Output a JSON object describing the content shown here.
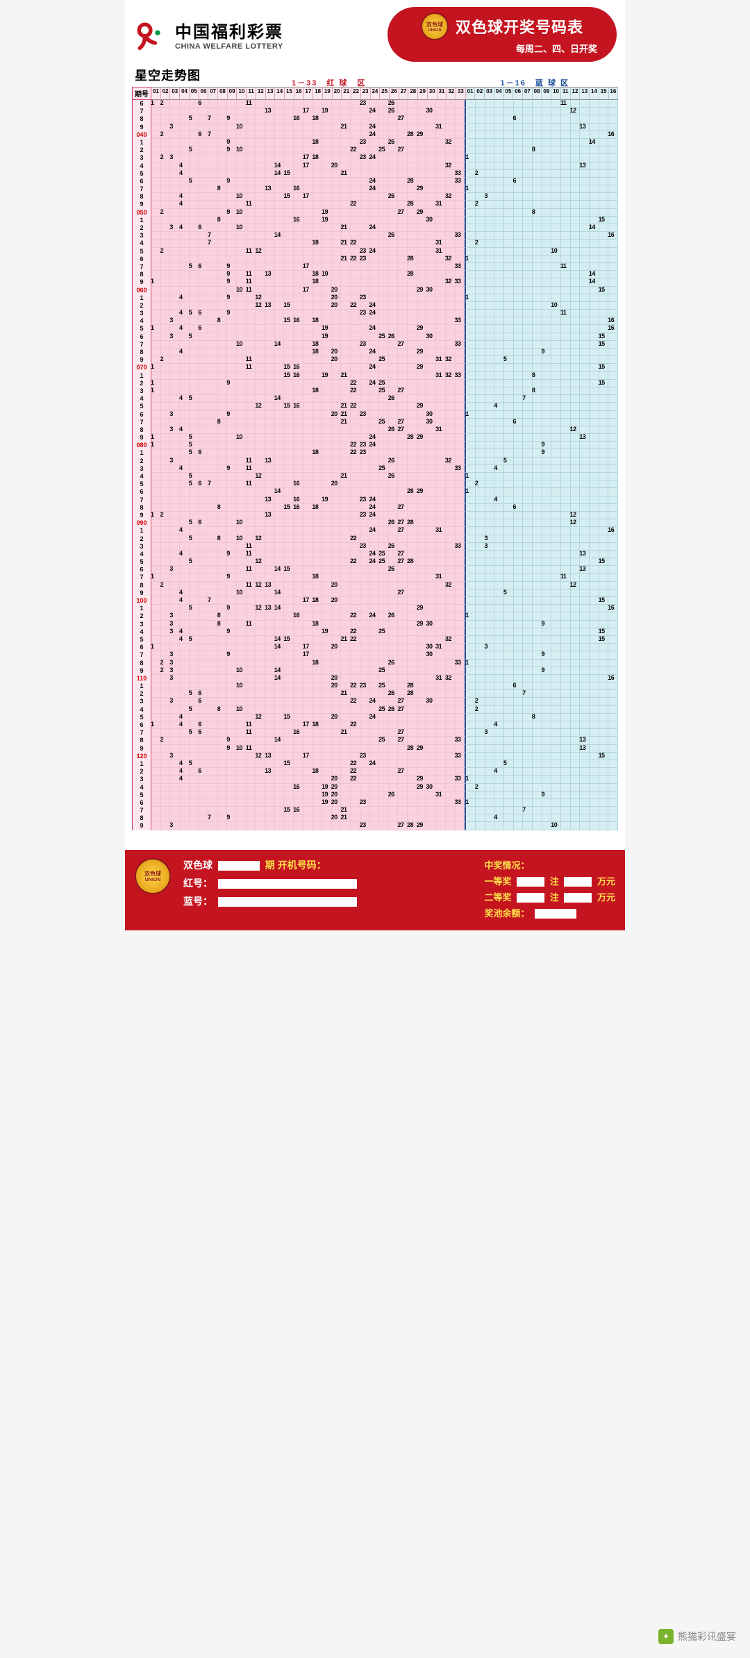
{
  "header": {
    "brand_cn": "中国福利彩票",
    "brand_en": "CHINA WELFARE LOTTERY",
    "logo_color": "#c41420",
    "badge_small": "双色球",
    "badge_small2": "UNION",
    "oval_title": "双色球开奖号码表",
    "oval_sub": "每周二、四、日开奖"
  },
  "subtitle": "星空走势图",
  "columns": {
    "issue_label": "期号",
    "red_section": "1－33　红 球　区",
    "blue_section": "1－16　蓝 球 区",
    "red_count": 33,
    "blue_count": 16
  },
  "style": {
    "red_bg": "#fad1e1",
    "blue_bg": "#d5eef2",
    "red_grid": "#efc3d4",
    "blue_grid": "#b2d4dc",
    "issue_milestone_color": "#d00000",
    "line_color": "#000000",
    "line_width": 1.4,
    "cell_height": 11.2,
    "issue_col_width": 28,
    "total_width": 700
  },
  "issues": [
    {
      "n": "6",
      "red": [
        1,
        2,
        6,
        11,
        23,
        26
      ],
      "blue": 11
    },
    {
      "n": "7",
      "red": [
        13,
        17,
        19,
        24,
        26,
        30
      ],
      "blue": 12
    },
    {
      "n": "8",
      "red": [
        5,
        7,
        9,
        16,
        18,
        27
      ],
      "blue": 6
    },
    {
      "n": "9",
      "red": [
        3,
        10,
        21,
        24,
        31
      ],
      "blue": 13
    },
    {
      "n": "040",
      "ms": true,
      "red": [
        2,
        6,
        7,
        24,
        28,
        29
      ],
      "blue": 16
    },
    {
      "n": "1",
      "red": [
        9,
        18,
        23,
        26,
        32
      ],
      "blue": 14
    },
    {
      "n": "2",
      "red": [
        5,
        9,
        10,
        22,
        25,
        27
      ],
      "blue": 8
    },
    {
      "n": "3",
      "red": [
        2,
        3,
        17,
        18,
        23,
        24
      ],
      "blue": 1
    },
    {
      "n": "4",
      "red": [
        4,
        14,
        17,
        20,
        32
      ],
      "blue": 13
    },
    {
      "n": "5",
      "red": [
        4,
        14,
        15,
        21,
        33
      ],
      "blue": 2
    },
    {
      "n": "6",
      "red": [
        5,
        9,
        24,
        28,
        33
      ],
      "blue": 6
    },
    {
      "n": "7",
      "red": [
        8,
        13,
        16,
        24,
        29
      ],
      "blue": 1
    },
    {
      "n": "8",
      "red": [
        4,
        10,
        15,
        17,
        26,
        32
      ],
      "blue": 3
    },
    {
      "n": "9",
      "red": [
        4,
        11,
        22,
        28,
        31
      ],
      "blue": 2
    },
    {
      "n": "050",
      "ms": true,
      "red": [
        2,
        9,
        10,
        19,
        27,
        29
      ],
      "blue": 8
    },
    {
      "n": "1",
      "red": [
        8,
        16,
        19,
        30
      ],
      "blue": 15
    },
    {
      "n": "2",
      "red": [
        3,
        4,
        6,
        10,
        21,
        24
      ],
      "blue": 14
    },
    {
      "n": "3",
      "red": [
        7,
        14,
        26,
        33
      ],
      "blue": 16
    },
    {
      "n": "4",
      "red": [
        7,
        18,
        21,
        22,
        31
      ],
      "blue": 2
    },
    {
      "n": "5",
      "red": [
        2,
        11,
        12,
        23,
        24,
        31
      ],
      "blue": 10
    },
    {
      "n": "6",
      "red": [
        21,
        22,
        23,
        28,
        32
      ],
      "blue": 1
    },
    {
      "n": "7",
      "red": [
        5,
        6,
        9,
        17,
        33
      ],
      "blue": 11
    },
    {
      "n": "8",
      "red": [
        9,
        11,
        13,
        18,
        19,
        28
      ],
      "blue": 14
    },
    {
      "n": "9",
      "red": [
        1,
        9,
        11,
        18,
        32,
        33
      ],
      "blue": 14
    },
    {
      "n": "060",
      "ms": true,
      "red": [
        10,
        11,
        17,
        20,
        29,
        30
      ],
      "blue": 15
    },
    {
      "n": "1",
      "red": [
        4,
        9,
        12,
        20,
        23
      ],
      "blue": 1
    },
    {
      "n": "2",
      "red": [
        12,
        13,
        15,
        20,
        22,
        24
      ],
      "blue": 10
    },
    {
      "n": "3",
      "red": [
        4,
        5,
        6,
        9,
        23,
        24
      ],
      "blue": 11
    },
    {
      "n": "4",
      "red": [
        3,
        8,
        15,
        16,
        18,
        33
      ],
      "blue": 16
    },
    {
      "n": "5",
      "red": [
        1,
        4,
        6,
        19,
        24,
        29
      ],
      "blue": 16
    },
    {
      "n": "6",
      "red": [
        3,
        5,
        19,
        25,
        26,
        30
      ],
      "blue": 15
    },
    {
      "n": "7",
      "red": [
        10,
        14,
        18,
        23,
        27,
        33
      ],
      "blue": 15
    },
    {
      "n": "8",
      "red": [
        4,
        18,
        20,
        24,
        29
      ],
      "blue": 9
    },
    {
      "n": "9",
      "red": [
        2,
        11,
        20,
        25,
        31,
        32
      ],
      "blue": 5
    },
    {
      "n": "070",
      "ms": true,
      "red": [
        1,
        11,
        15,
        16,
        24,
        29
      ],
      "blue": 15
    },
    {
      "n": "1",
      "red": [
        15,
        16,
        19,
        21,
        31,
        32,
        33
      ],
      "blue": 8
    },
    {
      "n": "2",
      "red": [
        1,
        9,
        22,
        24,
        25
      ],
      "blue": 15
    },
    {
      "n": "3",
      "red": [
        1,
        18,
        22,
        25,
        27
      ],
      "blue": 8
    },
    {
      "n": "4",
      "red": [
        4,
        5,
        14,
        26
      ],
      "blue": 7
    },
    {
      "n": "5",
      "red": [
        12,
        15,
        16,
        21,
        22,
        29
      ],
      "blue": 4
    },
    {
      "n": "6",
      "red": [
        3,
        9,
        20,
        21,
        23,
        30
      ],
      "blue": 1
    },
    {
      "n": "7",
      "red": [
        8,
        21,
        25,
        27,
        30
      ],
      "blue": 6
    },
    {
      "n": "8",
      "red": [
        3,
        4,
        26,
        27,
        31
      ],
      "blue": 12
    },
    {
      "n": "9",
      "red": [
        1,
        5,
        10,
        24,
        28,
        29
      ],
      "blue": 13
    },
    {
      "n": "080",
      "ms": true,
      "red": [
        1,
        5,
        22,
        23,
        24
      ],
      "blue": 9
    },
    {
      "n": "1",
      "red": [
        5,
        6,
        18,
        22,
        23
      ],
      "blue": 9
    },
    {
      "n": "2",
      "red": [
        3,
        11,
        13,
        26,
        32
      ],
      "blue": 5
    },
    {
      "n": "3",
      "red": [
        4,
        9,
        11,
        25,
        33
      ],
      "blue": 4
    },
    {
      "n": "4",
      "red": [
        5,
        12,
        21,
        26
      ],
      "blue": 1
    },
    {
      "n": "5",
      "red": [
        5,
        6,
        7,
        11,
        16,
        20
      ],
      "blue": 2
    },
    {
      "n": "6",
      "red": [
        14,
        28,
        29
      ],
      "blue": 1
    },
    {
      "n": "7",
      "red": [
        13,
        16,
        19,
        23,
        24
      ],
      "blue": 4
    },
    {
      "n": "8",
      "red": [
        8,
        15,
        16,
        18,
        24,
        27
      ],
      "blue": 6
    },
    {
      "n": "9",
      "red": [
        1,
        2,
        13,
        23,
        24
      ],
      "blue": 12
    },
    {
      "n": "090",
      "ms": true,
      "red": [
        5,
        6,
        10,
        26,
        27,
        28
      ],
      "blue": 12
    },
    {
      "n": "1",
      "red": [
        4,
        24,
        27,
        31
      ],
      "blue": 16
    },
    {
      "n": "2",
      "red": [
        5,
        8,
        10,
        12,
        22
      ],
      "blue": 3
    },
    {
      "n": "3",
      "red": [
        11,
        23,
        26,
        33
      ],
      "blue": 3
    },
    {
      "n": "4",
      "red": [
        4,
        9,
        11,
        24,
        25,
        27
      ],
      "blue": 13
    },
    {
      "n": "5",
      "red": [
        5,
        12,
        22,
        24,
        25,
        27,
        28
      ],
      "blue": 15
    },
    {
      "n": "6",
      "red": [
        3,
        11,
        14,
        15,
        26
      ],
      "blue": 13
    },
    {
      "n": "7",
      "red": [
        1,
        9,
        18,
        31
      ],
      "blue": 11
    },
    {
      "n": "8",
      "red": [
        2,
        11,
        12,
        13,
        20,
        32
      ],
      "blue": 12
    },
    {
      "n": "9",
      "red": [
        4,
        10,
        14,
        27
      ],
      "blue": 5
    },
    {
      "n": "100",
      "ms": true,
      "red": [
        4,
        7,
        17,
        18,
        20
      ],
      "blue": 15
    },
    {
      "n": "1",
      "red": [
        5,
        9,
        12,
        13,
        14,
        29
      ],
      "blue": 16
    },
    {
      "n": "2",
      "red": [
        3,
        8,
        16,
        22,
        24,
        26
      ],
      "blue": 1
    },
    {
      "n": "3",
      "red": [
        3,
        8,
        11,
        18,
        29,
        30
      ],
      "blue": 9
    },
    {
      "n": "4",
      "red": [
        3,
        4,
        9,
        19,
        22,
        25
      ],
      "blue": 15
    },
    {
      "n": "5",
      "red": [
        5,
        4,
        14,
        15,
        21,
        22,
        32
      ],
      "blue": 15
    },
    {
      "n": "6",
      "red": [
        1,
        14,
        17,
        20,
        30,
        31
      ],
      "blue": 3
    },
    {
      "n": "7",
      "red": [
        3,
        9,
        17,
        30
      ],
      "blue": 9
    },
    {
      "n": "8",
      "red": [
        2,
        3,
        18,
        26,
        33
      ],
      "blue": 1
    },
    {
      "n": "9",
      "red": [
        2,
        3,
        10,
        14,
        25
      ],
      "blue": 9
    },
    {
      "n": "110",
      "ms": true,
      "red": [
        3,
        14,
        20,
        31,
        32
      ],
      "blue": 16
    },
    {
      "n": "1",
      "red": [
        10,
        20,
        22,
        23,
        25,
        28
      ],
      "blue": 6
    },
    {
      "n": "2",
      "red": [
        5,
        6,
        21,
        26,
        28
      ],
      "blue": 7
    },
    {
      "n": "3",
      "red": [
        3,
        6,
        22,
        24,
        27,
        30
      ],
      "blue": 2
    },
    {
      "n": "4",
      "red": [
        5,
        8,
        10,
        25,
        27,
        26
      ],
      "blue": 2
    },
    {
      "n": "5",
      "red": [
        4,
        12,
        15,
        20,
        24
      ],
      "blue": 8
    },
    {
      "n": "6",
      "red": [
        1,
        4,
        6,
        11,
        17,
        18,
        22
      ],
      "blue": 4
    },
    {
      "n": "7",
      "red": [
        5,
        6,
        11,
        16,
        21,
        27
      ],
      "blue": 3
    },
    {
      "n": "8",
      "red": [
        2,
        9,
        14,
        25,
        27,
        33
      ],
      "blue": 13
    },
    {
      "n": "9",
      "red": [
        9,
        10,
        11,
        28,
        29
      ],
      "blue": 13
    },
    {
      "n": "120",
      "ms": true,
      "red": [
        3,
        12,
        13,
        17,
        23,
        33
      ],
      "blue": 15
    },
    {
      "n": "1",
      "red": [
        4,
        5,
        15,
        22,
        24
      ],
      "blue": 5
    },
    {
      "n": "2",
      "red": [
        4,
        6,
        13,
        18,
        22,
        27
      ],
      "blue": 4
    },
    {
      "n": "3",
      "red": [
        4,
        20,
        22,
        29,
        33
      ],
      "blue": 1
    },
    {
      "n": "4",
      "red": [
        16,
        19,
        20,
        29,
        30
      ],
      "blue": 2
    },
    {
      "n": "5",
      "red": [
        19,
        20,
        26,
        31
      ],
      "blue": 9
    },
    {
      "n": "6",
      "red": [
        19,
        20,
        23,
        33
      ],
      "blue": 1
    },
    {
      "n": "7",
      "red": [
        15,
        16,
        21
      ],
      "blue": 7
    },
    {
      "n": "8",
      "red": [
        7,
        9,
        20,
        21
      ],
      "blue": 4
    },
    {
      "n": "9",
      "red": [
        3,
        23,
        27,
        28,
        29
      ],
      "blue": 10
    }
  ],
  "footer": {
    "ball_label": "双色球",
    "issue_suffix": "期 开机号码：",
    "red_label": "红号：",
    "blue_label": "蓝号：",
    "prize_header": "中奖情况：",
    "prize1": "一等奖",
    "prize2": "二等奖",
    "unit_zhu": "注",
    "unit_wan": "万元",
    "pool_label": "奖池余额：",
    "badge_small": "双色球",
    "badge_small2": "UNION"
  },
  "watermark": "熊猫彩讯盛宴"
}
